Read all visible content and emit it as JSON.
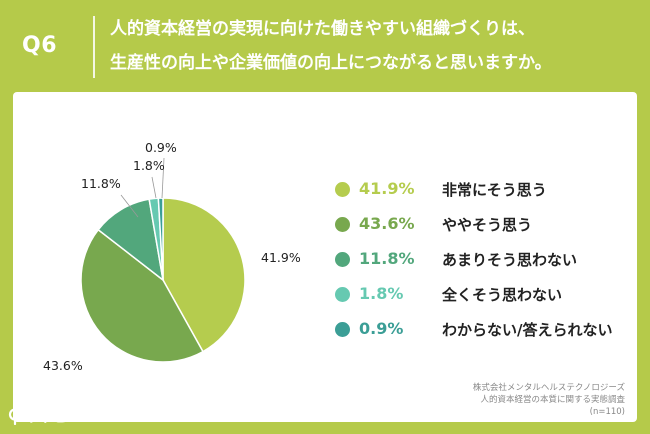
{
  "header": {
    "q_label": "Q6",
    "question_line1": "人的資本経営の実現に向けた働きやすい組織づくりは、",
    "question_line2": "生産性の向上や企業価値の向上につながると思いますか。"
  },
  "chart_data": {
    "type": "pie",
    "slices": [
      {
        "label": "非常にそう思う",
        "value": 41.9,
        "display": "41.9%",
        "color": "#b5cc4e"
      },
      {
        "label": "ややそう思う",
        "value": 43.6,
        "display": "43.6%",
        "color": "#78a84e"
      },
      {
        "label": "あまりそう思わない",
        "value": 11.8,
        "display": "11.8%",
        "color": "#52a77c"
      },
      {
        "label": "全くそう思わない",
        "value": 1.8,
        "display": "1.8%",
        "color": "#66c9b1"
      },
      {
        "label": "わからない/答えられない",
        "value": 0.9,
        "display": "0.9%",
        "color": "#3b9e96"
      }
    ],
    "legend_position": "right"
  },
  "source": {
    "line1": "株式会社メンタルヘルステクノロジーズ",
    "line2": "人的資本経営の本質に関する実態調査",
    "line3": "(n=110)"
  },
  "logo": {
    "text": "リサピー"
  },
  "colors": {
    "background": "#b5ca4a",
    "card": "#ffffff"
  }
}
